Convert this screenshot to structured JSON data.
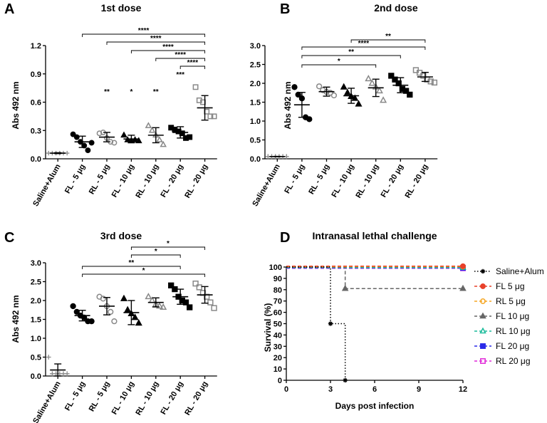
{
  "chart_data": [
    {
      "panel": "A",
      "type": "scatter",
      "title": "1st dose",
      "ylabel": "Abs 492 nm",
      "ylim": [
        0,
        1.2
      ],
      "yticks": [
        "0.0",
        "0.3",
        "0.6",
        "0.9",
        "1.2"
      ],
      "categories": [
        "Saline+Alum",
        "FL - 5 μg",
        "RL - 5 μg",
        "FL - 10 μg",
        "RL - 10 μg",
        "FL - 20 μg",
        "RL - 20 μg"
      ],
      "groups": [
        {
          "marker": "plus",
          "color": "#888888",
          "mean": 0.06,
          "sd": 0.005,
          "points": [
            0.06,
            0.06,
            0.06,
            0.06,
            0.06,
            0.06
          ]
        },
        {
          "marker": "circle",
          "color": "#000000",
          "mean": 0.18,
          "sd": 0.06,
          "points": [
            0.26,
            0.23,
            0.18,
            0.14,
            0.09,
            0.17
          ]
        },
        {
          "marker": "circle-open",
          "color": "#888888",
          "mean": 0.23,
          "sd": 0.05,
          "points": [
            0.27,
            0.28,
            0.22,
            0.18,
            0.17
          ]
        },
        {
          "marker": "triangle",
          "color": "#000000",
          "mean": 0.21,
          "sd": 0.04,
          "points": [
            0.25,
            0.2,
            0.19,
            0.2,
            0.19
          ]
        },
        {
          "marker": "triangle-open",
          "color": "#888888",
          "mean": 0.25,
          "sd": 0.08,
          "points": [
            0.35,
            0.3,
            0.25,
            0.2,
            0.15
          ]
        },
        {
          "marker": "square",
          "color": "#000000",
          "mean": 0.28,
          "sd": 0.06,
          "points": [
            0.33,
            0.31,
            0.29,
            0.27,
            0.22,
            0.23
          ]
        },
        {
          "marker": "square-open",
          "color": "#888888",
          "mean": 0.54,
          "sd": 0.13,
          "points": [
            0.76,
            0.62,
            0.6,
            0.5,
            0.45,
            0.45
          ]
        }
      ],
      "group_stars": [
        "",
        "**",
        "*",
        "**",
        "***",
        "****"
      ],
      "brackets": [
        {
          "from": 1,
          "to": 6,
          "label": "****"
        },
        {
          "from": 2,
          "to": 6,
          "label": "****"
        },
        {
          "from": 3,
          "to": 6,
          "label": "****"
        },
        {
          "from": 4,
          "to": 6,
          "label": "****"
        },
        {
          "from": 5,
          "to": 6,
          "label": "****"
        }
      ]
    },
    {
      "panel": "B",
      "type": "scatter",
      "title": "2nd dose",
      "ylabel": "Abs 492 nm",
      "ylim": [
        0,
        3.0
      ],
      "yticks": [
        "0.0",
        "0.5",
        "1.0",
        "1.5",
        "2.0",
        "2.5",
        "3.0"
      ],
      "categories": [
        "Saline+Alum",
        "FL - 5 μg",
        "RL - 5 μg",
        "FL - 10 μg",
        "RL - 10 μg",
        "FL - 20 μg",
        "RL - 20 μg"
      ],
      "groups": [
        {
          "marker": "plus",
          "color": "#888888",
          "mean": 0.06,
          "sd": 0.005,
          "points": [
            0.06,
            0.06,
            0.06,
            0.06,
            0.06,
            0.06
          ]
        },
        {
          "marker": "circle",
          "color": "#000000",
          "mean": 1.43,
          "sd": 0.33,
          "points": [
            1.9,
            1.7,
            1.6,
            1.1,
            1.05
          ]
        },
        {
          "marker": "circle-open",
          "color": "#888888",
          "mean": 1.78,
          "sd": 0.12,
          "points": [
            1.92,
            1.82,
            1.77,
            1.75,
            1.68
          ]
        },
        {
          "marker": "triangle",
          "color": "#000000",
          "mean": 1.67,
          "sd": 0.2,
          "points": [
            1.9,
            1.75,
            1.65,
            1.6,
            1.45
          ]
        },
        {
          "marker": "triangle-open",
          "color": "#888888",
          "mean": 1.88,
          "sd": 0.23,
          "points": [
            2.12,
            2.0,
            1.9,
            1.8,
            1.55
          ]
        },
        {
          "marker": "square",
          "color": "#000000",
          "mean": 1.95,
          "sd": 0.2,
          "points": [
            2.2,
            2.1,
            2.0,
            1.85,
            1.8,
            1.7
          ]
        },
        {
          "marker": "square-open",
          "color": "#888888",
          "mean": 2.17,
          "sd": 0.12,
          "points": [
            2.35,
            2.28,
            2.2,
            2.1,
            2.05,
            2.02
          ]
        }
      ],
      "group_stars": [],
      "brackets": [
        {
          "from": 3,
          "to": 6,
          "label": "**"
        },
        {
          "from": 1,
          "to": 6,
          "label": "****"
        },
        {
          "from": 1,
          "to": 5,
          "label": "**"
        },
        {
          "from": 1,
          "to": 4,
          "label": "*"
        }
      ]
    },
    {
      "panel": "C",
      "type": "scatter",
      "title": "3rd dose",
      "ylabel": "Abs 492 nm",
      "ylim": [
        0,
        3.0
      ],
      "yticks": [
        "0.0",
        "0.5",
        "1.0",
        "1.5",
        "2.0",
        "2.5",
        "3.0"
      ],
      "categories": [
        "Saline+Alum",
        "FL - 5 μg",
        "RL - 5 μg",
        "FL - 10 μg",
        "RL - 10 μg",
        "FL - 20 μg",
        "RL - 20 μg"
      ],
      "groups": [
        {
          "marker": "plus",
          "color": "#888888",
          "mean": 0.16,
          "sd": 0.16,
          "points": [
            0.5,
            0.06,
            0.06,
            0.06,
            0.06,
            0.06
          ]
        },
        {
          "marker": "circle",
          "color": "#000000",
          "mean": 1.6,
          "sd": 0.14,
          "points": [
            1.85,
            1.7,
            1.6,
            1.55,
            1.45,
            1.45
          ]
        },
        {
          "marker": "circle-open",
          "color": "#888888",
          "mean": 1.85,
          "sd": 0.23,
          "points": [
            2.1,
            2.05,
            1.85,
            1.7,
            1.45
          ]
        },
        {
          "marker": "triangle",
          "color": "#000000",
          "mean": 1.68,
          "sd": 0.32,
          "points": [
            2.05,
            1.75,
            1.65,
            1.55,
            1.4
          ]
        },
        {
          "marker": "triangle-open",
          "color": "#888888",
          "mean": 1.95,
          "sd": 0.12,
          "points": [
            2.1,
            2.0,
            1.9,
            1.85,
            1.82
          ]
        },
        {
          "marker": "square",
          "color": "#000000",
          "mean": 2.1,
          "sd": 0.2,
          "points": [
            2.4,
            2.3,
            2.1,
            2.0,
            1.95,
            1.82
          ]
        },
        {
          "marker": "square-open",
          "color": "#888888",
          "mean": 2.15,
          "sd": 0.22,
          "points": [
            2.45,
            2.35,
            2.2,
            2.1,
            1.95,
            1.8
          ]
        }
      ],
      "group_stars": [],
      "brackets": [
        {
          "from": 3,
          "to": 6,
          "label": "*"
        },
        {
          "from": 3,
          "to": 5,
          "label": "*"
        },
        {
          "from": 1,
          "to": 5,
          "label": "**"
        },
        {
          "from": 1,
          "to": 6,
          "label": "*"
        }
      ]
    },
    {
      "panel": "D",
      "type": "line",
      "title": "Intranasal lethal challenge",
      "xlabel": "Days post infection",
      "ylabel": "Survival (%)",
      "xlim": [
        0,
        12
      ],
      "ylim": [
        0,
        100
      ],
      "xticks": [
        "0",
        "3",
        "6",
        "9",
        "12"
      ],
      "yticks": [
        "0",
        "10",
        "20",
        "30",
        "40",
        "50",
        "60",
        "70",
        "80",
        "90",
        "100"
      ],
      "series": [
        {
          "name": "Saline+Alum",
          "color": "#000000",
          "marker": "star",
          "dash": "dot",
          "steps": [
            [
              0,
              100
            ],
            [
              3,
              50
            ],
            [
              4,
              0
            ]
          ],
          "end_x": 4,
          "marked": [
            [
              3,
              50
            ],
            [
              4,
              0
            ]
          ]
        },
        {
          "name": "FL 5 μg",
          "color": "#e8412a",
          "marker": "circle",
          "dash": "dash",
          "steps": [
            [
              0,
              100
            ]
          ],
          "end_x": 12,
          "marked": [
            [
              12,
              100
            ]
          ]
        },
        {
          "name": "RL 5 μg",
          "color": "#f5a623",
          "marker": "circle-open",
          "dash": "dash",
          "steps": [
            [
              0,
              100
            ]
          ],
          "end_x": 12,
          "marked": [
            [
              12,
              100
            ]
          ]
        },
        {
          "name": "FL 10 μg",
          "color": "#666666",
          "marker": "triangle",
          "dash": "dash",
          "steps": [
            [
              0,
              100
            ],
            [
              4,
              81
            ]
          ],
          "end_x": 12,
          "marked": [
            [
              4,
              81
            ],
            [
              12,
              81
            ]
          ]
        },
        {
          "name": "RL 10 μg",
          "color": "#1bbc9b",
          "marker": "triangle-open",
          "dash": "dash",
          "steps": [
            [
              0,
              100
            ]
          ],
          "end_x": 12,
          "marked": [
            [
              12,
              100
            ]
          ]
        },
        {
          "name": "FL 20 μg",
          "color": "#2a2ae8",
          "marker": "square",
          "dash": "dash",
          "steps": [
            [
              0,
              100
            ]
          ],
          "end_x": 12,
          "marked": [
            [
              12,
              100
            ]
          ]
        },
        {
          "name": "RL 20 μg",
          "color": "#e02ad8",
          "marker": "square-open",
          "dash": "dash",
          "steps": [
            [
              0,
              100
            ]
          ],
          "end_x": 12,
          "marked": [
            [
              12,
              100
            ]
          ]
        }
      ]
    }
  ]
}
